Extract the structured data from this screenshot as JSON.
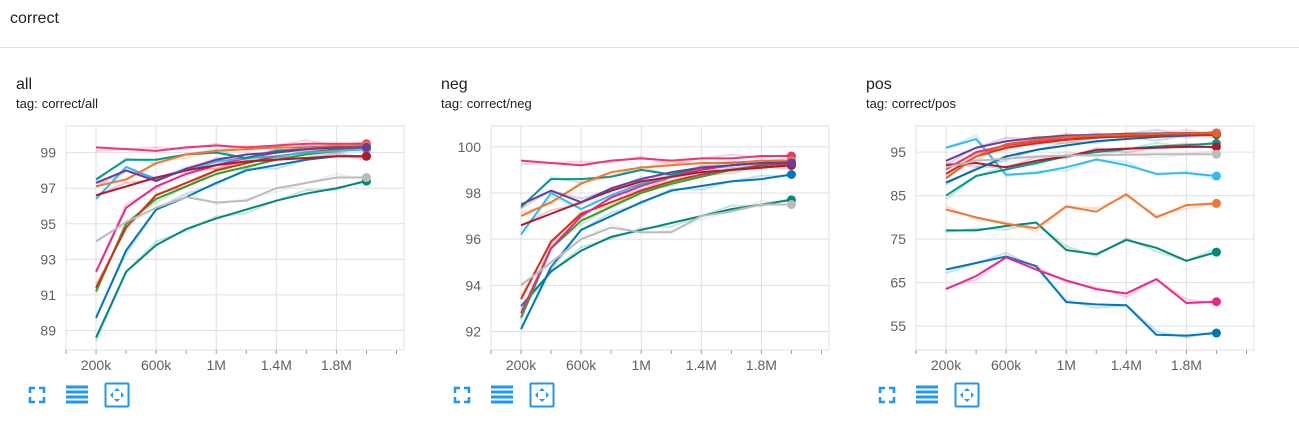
{
  "section": {
    "title": "correct"
  },
  "cards": [
    {
      "title": "all",
      "tag_prefix": "tag:",
      "tag": "correct/all"
    },
    {
      "title": "neg",
      "tag_prefix": "tag:",
      "tag": "correct/neg"
    },
    {
      "title": "pos",
      "tag_prefix": "tag:",
      "tag": "correct/pos"
    }
  ],
  "toolbar_icons": [
    "fullscreen-icon",
    "toggle-log-scale-icon",
    "fit-domain-icon"
  ],
  "colors": {
    "accent": "#2196f3",
    "grid": "#e0e0e0",
    "text": "#212121"
  },
  "chart_data": [
    {
      "type": "line",
      "title": "all",
      "xlabel": "",
      "ylabel": "",
      "x_ticks": [
        "200k",
        "600k",
        "1M",
        "1.4M",
        "1.8M"
      ],
      "x_tick_values": [
        200000,
        600000,
        1000000,
        1400000,
        1800000
      ],
      "xlim": [
        0,
        2250000
      ],
      "y_ticks": [
        89,
        91,
        93,
        95,
        97,
        99
      ],
      "ylim": [
        87.9,
        100.5
      ],
      "grid": true,
      "x": [
        200000,
        400000,
        600000,
        800000,
        1000000,
        1200000,
        1400000,
        1600000,
        1800000,
        2000000
      ],
      "series": [
        {
          "color": "#00897b",
          "values": [
            88.6,
            92.3,
            93.8,
            94.7,
            95.3,
            95.8,
            96.3,
            96.7,
            97.0,
            97.4
          ]
        },
        {
          "color": "#0077bb",
          "values": [
            89.7,
            93.5,
            95.8,
            96.5,
            97.3,
            98.0,
            98.3,
            98.6,
            98.8,
            98.8
          ]
        },
        {
          "color": "#33a02c",
          "values": [
            91.2,
            95.0,
            96.4,
            97.1,
            97.8,
            98.2,
            98.6,
            98.9,
            99.1,
            99.2
          ]
        },
        {
          "color": "#cc3311",
          "values": [
            91.4,
            94.8,
            96.6,
            97.3,
            98.0,
            98.4,
            98.8,
            99.0,
            99.2,
            99.3
          ]
        },
        {
          "color": "#e7298a",
          "values": [
            92.3,
            95.9,
            97.1,
            97.8,
            98.3,
            98.7,
            99.0,
            99.2,
            99.3,
            99.4
          ]
        },
        {
          "color": "#ee3377",
          "values": [
            99.3,
            99.2,
            99.1,
            99.3,
            99.4,
            99.3,
            99.4,
            99.5,
            99.5,
            99.5
          ]
        },
        {
          "color": "#33bbee",
          "values": [
            96.4,
            98.2,
            97.5,
            98.0,
            98.5,
            98.7,
            98.8,
            99.0,
            99.1,
            99.2
          ]
        },
        {
          "color": "#009988",
          "values": [
            97.5,
            98.6,
            98.6,
            98.9,
            99.0,
            98.7,
            99.1,
            99.2,
            99.3,
            99.3
          ]
        },
        {
          "color": "#ee7733",
          "values": [
            97.1,
            97.5,
            98.4,
            98.9,
            99.1,
            99.2,
            99.3,
            99.3,
            99.4,
            99.4
          ]
        },
        {
          "color": "#b2182b",
          "values": [
            96.6,
            97.1,
            97.6,
            98.0,
            98.3,
            98.5,
            98.6,
            98.7,
            98.8,
            98.8
          ]
        },
        {
          "color": "#6a3d9a",
          "values": [
            97.3,
            98.0,
            97.4,
            98.1,
            98.6,
            98.9,
            99.0,
            99.2,
            99.3,
            99.3
          ]
        },
        {
          "color": "#bbbbbb",
          "values": [
            94.0,
            95.1,
            95.9,
            96.5,
            96.2,
            96.3,
            97.0,
            97.3,
            97.6,
            97.6
          ]
        }
      ]
    },
    {
      "type": "line",
      "title": "neg",
      "xlabel": "",
      "ylabel": "",
      "x_ticks": [
        "200k",
        "600k",
        "1M",
        "1.4M",
        "1.8M"
      ],
      "x_tick_values": [
        200000,
        600000,
        1000000,
        1400000,
        1800000
      ],
      "xlim": [
        0,
        2250000
      ],
      "y_ticks": [
        92,
        94,
        96,
        98,
        100
      ],
      "ylim": [
        91.2,
        100.9
      ],
      "grid": true,
      "x": [
        200000,
        400000,
        600000,
        800000,
        1000000,
        1200000,
        1400000,
        1600000,
        1800000,
        2000000
      ],
      "series": [
        {
          "color": "#00897b",
          "values": [
            93.1,
            94.6,
            95.5,
            96.1,
            96.4,
            96.7,
            97.0,
            97.3,
            97.5,
            97.7
          ]
        },
        {
          "color": "#0077bb",
          "values": [
            92.1,
            94.8,
            96.4,
            97.0,
            97.6,
            98.1,
            98.3,
            98.5,
            98.6,
            98.8
          ]
        },
        {
          "color": "#33a02c",
          "values": [
            92.6,
            95.6,
            96.8,
            97.4,
            98.0,
            98.4,
            98.7,
            99.0,
            99.1,
            99.2
          ]
        },
        {
          "color": "#cc3311",
          "values": [
            93.4,
            95.9,
            97.1,
            97.6,
            98.1,
            98.5,
            98.8,
            99.0,
            99.2,
            99.3
          ]
        },
        {
          "color": "#e7298a",
          "values": [
            92.8,
            95.6,
            97.0,
            97.8,
            98.3,
            98.7,
            99.0,
            99.2,
            99.3,
            99.4
          ]
        },
        {
          "color": "#ee3377",
          "values": [
            99.4,
            99.3,
            99.2,
            99.4,
            99.5,
            99.4,
            99.5,
            99.5,
            99.6,
            99.6
          ]
        },
        {
          "color": "#33bbee",
          "values": [
            96.2,
            98.0,
            97.3,
            97.9,
            98.4,
            98.7,
            98.9,
            99.0,
            99.1,
            99.2
          ]
        },
        {
          "color": "#009988",
          "values": [
            97.4,
            98.6,
            98.6,
            98.7,
            99.0,
            98.8,
            99.1,
            99.2,
            99.3,
            99.4
          ]
        },
        {
          "color": "#ee7733",
          "values": [
            97.0,
            97.6,
            98.4,
            98.9,
            99.1,
            99.2,
            99.3,
            99.3,
            99.4,
            99.4
          ]
        },
        {
          "color": "#b2182b",
          "values": [
            96.6,
            97.1,
            97.6,
            98.1,
            98.5,
            98.7,
            98.9,
            99.0,
            99.1,
            99.2
          ]
        },
        {
          "color": "#6a3d9a",
          "values": [
            97.5,
            98.1,
            97.6,
            98.2,
            98.6,
            98.9,
            99.1,
            99.2,
            99.3,
            99.3
          ]
        },
        {
          "color": "#bbbbbb",
          "values": [
            94.0,
            95.0,
            96.0,
            96.5,
            96.3,
            96.3,
            97.0,
            97.2,
            97.5,
            97.5
          ]
        }
      ]
    },
    {
      "type": "line",
      "title": "pos",
      "xlabel": "",
      "ylabel": "",
      "x_ticks": [
        "200k",
        "600k",
        "1M",
        "1.4M",
        "1.8M"
      ],
      "x_tick_values": [
        200000,
        600000,
        1000000,
        1400000,
        1800000
      ],
      "xlim": [
        0,
        2250000
      ],
      "y_ticks": [
        55,
        65,
        75,
        85,
        95
      ],
      "ylim": [
        49.5,
        101
      ],
      "grid": true,
      "x": [
        200000,
        400000,
        600000,
        800000,
        1000000,
        1200000,
        1400000,
        1600000,
        1800000,
        2000000
      ],
      "series": [
        {
          "color": "#0077bb",
          "values": [
            68.0,
            69.5,
            71.0,
            68.8,
            60.5,
            60.0,
            59.8,
            53.0,
            52.8,
            53.4
          ]
        },
        {
          "color": "#e7298a",
          "values": [
            63.5,
            66.5,
            70.8,
            68.0,
            65.5,
            63.5,
            62.5,
            65.8,
            60.3,
            60.6
          ]
        },
        {
          "color": "#00897b",
          "values": [
            77.0,
            77.0,
            78.0,
            78.8,
            72.5,
            71.5,
            74.8,
            73.0,
            70.0,
            72.0
          ]
        },
        {
          "color": "#ee7733",
          "values": [
            81.8,
            80.0,
            78.5,
            77.5,
            82.5,
            81.3,
            85.3,
            80.0,
            82.8,
            83.2
          ]
        },
        {
          "color": "#33bbee",
          "values": [
            96.0,
            98.0,
            89.8,
            90.2,
            91.5,
            93.3,
            92.0,
            90.0,
            90.2,
            89.5
          ]
        },
        {
          "color": "#009988",
          "values": [
            85.0,
            89.5,
            91.0,
            92.5,
            94.0,
            95.0,
            95.7,
            96.3,
            96.6,
            97.0
          ]
        },
        {
          "color": "#b2182b",
          "values": [
            92.0,
            92.5,
            91.5,
            93.0,
            94.0,
            95.5,
            95.8,
            96.0,
            96.2,
            96.2
          ]
        },
        {
          "color": "#0066aa",
          "values": [
            88.0,
            91.0,
            94.0,
            95.5,
            96.5,
            97.5,
            98.0,
            98.5,
            98.8,
            99.0
          ]
        },
        {
          "color": "#ee3377",
          "values": [
            91.0,
            95.0,
            96.5,
            97.5,
            98.0,
            98.5,
            98.8,
            99.0,
            99.1,
            99.2
          ]
        },
        {
          "color": "#cc3311",
          "values": [
            90.0,
            94.0,
            96.0,
            97.0,
            97.8,
            98.3,
            98.6,
            98.8,
            99.0,
            99.1
          ]
        },
        {
          "color": "#6a3d9a",
          "values": [
            93.0,
            96.0,
            97.5,
            98.3,
            98.8,
            99.0,
            99.2,
            99.3,
            99.4,
            99.4
          ]
        },
        {
          "color": "#e8602c",
          "values": [
            89.0,
            94.0,
            96.8,
            97.8,
            98.5,
            98.8,
            99.0,
            99.2,
            99.3,
            99.4
          ]
        },
        {
          "color": "#bbbbbb",
          "values": [
            91.5,
            93.0,
            93.5,
            94.0,
            94.2,
            94.3,
            94.4,
            94.5,
            94.5,
            94.5
          ]
        }
      ]
    }
  ]
}
